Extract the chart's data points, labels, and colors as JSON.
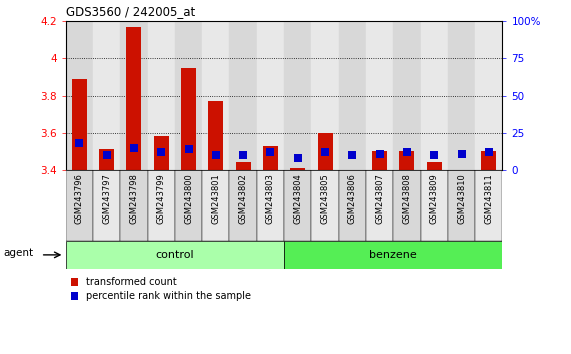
{
  "title": "GDS3560 / 242005_at",
  "samples": [
    "GSM243796",
    "GSM243797",
    "GSM243798",
    "GSM243799",
    "GSM243800",
    "GSM243801",
    "GSM243802",
    "GSM243803",
    "GSM243804",
    "GSM243805",
    "GSM243806",
    "GSM243807",
    "GSM243808",
    "GSM243809",
    "GSM243810",
    "GSM243811"
  ],
  "red_values": [
    3.89,
    3.51,
    4.17,
    3.58,
    3.95,
    3.77,
    3.44,
    3.53,
    3.41,
    3.6,
    3.4,
    3.5,
    3.5,
    3.44,
    3.4,
    3.5
  ],
  "blue_pct": [
    18,
    10,
    15,
    12,
    14,
    10,
    10,
    12,
    8,
    12,
    10,
    11,
    12,
    10,
    11,
    12
  ],
  "baseline": 3.4,
  "ylim_left": [
    3.4,
    4.2
  ],
  "ylim_right": [
    0,
    100
  ],
  "yticks_left": [
    3.4,
    3.6,
    3.8,
    4.0,
    4.2
  ],
  "ytick_labels_left": [
    "3.4",
    "3.6",
    "3.8",
    "4",
    "4.2"
  ],
  "yticks_right": [
    0,
    25,
    50,
    75,
    100
  ],
  "ytick_labels_right": [
    "0",
    "25",
    "50",
    "75",
    "100%"
  ],
  "grid_values": [
    3.6,
    3.8,
    4.0
  ],
  "control_label": "control",
  "benzene_label": "benzene",
  "control_count": 8,
  "benzene_count": 8,
  "agent_label": "agent",
  "legend_red": "transformed count",
  "legend_blue": "percentile rank within the sample",
  "bar_color": "#cc1100",
  "blue_color": "#0000cc",
  "control_bg": "#aaffaa",
  "benzene_bg": "#55ee55",
  "col_bg_even": "#d8d8d8",
  "col_bg_odd": "#e8e8e8",
  "bar_width": 0.55
}
